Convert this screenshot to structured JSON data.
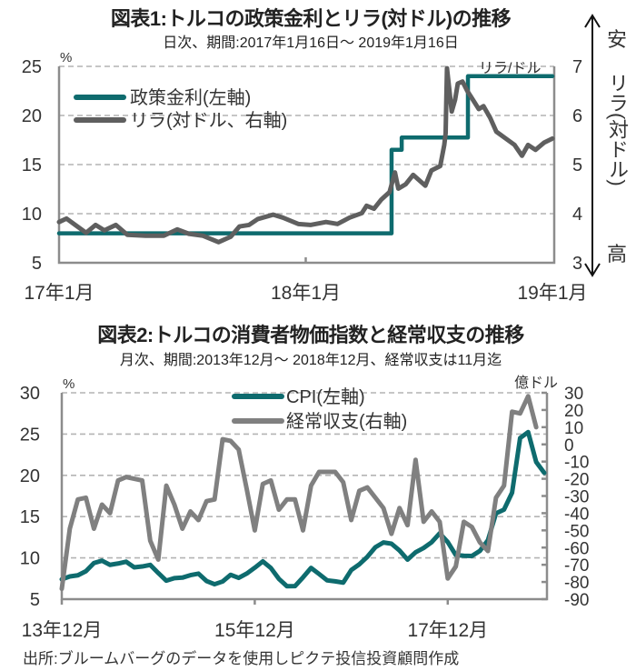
{
  "chart_data": [
    {
      "type": "line",
      "title": "図表1:トルコの政策金利とリラ(対ドル)の推移",
      "subtitle": "日次、期間:2017年1月16日～ 2019年1月16日",
      "x_range": [
        "2017-01-16",
        "2019-01-16"
      ],
      "x_ticks": [
        "2017-01-16",
        "2018-01-16",
        "2019-01-16"
      ],
      "x_tick_labels": [
        "17年1月",
        "18年1月",
        "19年1月"
      ],
      "y_left": {
        "label": "%",
        "range": [
          5,
          25
        ],
        "ticks": [
          5,
          10,
          15,
          20,
          25
        ],
        "tick_labels": [
          "5",
          "10",
          "15",
          "20",
          "25"
        ]
      },
      "y_right": {
        "label": "リラ/ドル",
        "range": [
          3,
          7
        ],
        "ticks": [
          3,
          4,
          5,
          6,
          7
        ],
        "tick_labels": [
          "3",
          "4",
          "5",
          "6",
          "7"
        ]
      },
      "right_annotation": {
        "top": "安",
        "middle": "リラ(対ドル)",
        "bottom": "高"
      },
      "grid": true,
      "legend_position": "top-left",
      "series": [
        {
          "name": "政策金利(左軸)",
          "axis": "left",
          "style": "step",
          "color": "#0e6b6e",
          "points": [
            [
              "2017-01-16",
              8.0
            ],
            [
              "2018-05-23",
              16.5
            ],
            [
              "2018-06-07",
              17.75
            ],
            [
              "2018-09-13",
              24.0
            ],
            [
              "2019-01-16",
              24.0
            ]
          ]
        },
        {
          "name": "リラ(対ドル、右軸)",
          "axis": "right",
          "style": "line",
          "color": "#5f5f5f",
          "points": [
            [
              "2017-01-16",
              3.83
            ],
            [
              "2017-01-27",
              3.9
            ],
            [
              "2017-02-09",
              3.77
            ],
            [
              "2017-02-25",
              3.61
            ],
            [
              "2017-03-11",
              3.77
            ],
            [
              "2017-03-24",
              3.66
            ],
            [
              "2017-04-10",
              3.77
            ],
            [
              "2017-04-27",
              3.57
            ],
            [
              "2017-05-24",
              3.55
            ],
            [
              "2017-06-20",
              3.55
            ],
            [
              "2017-07-10",
              3.68
            ],
            [
              "2017-07-27",
              3.59
            ],
            [
              "2017-08-17",
              3.55
            ],
            [
              "2017-09-09",
              3.42
            ],
            [
              "2017-09-27",
              3.53
            ],
            [
              "2017-10-10",
              3.74
            ],
            [
              "2017-10-24",
              3.77
            ],
            [
              "2017-11-06",
              3.89
            ],
            [
              "2017-11-29",
              3.98
            ],
            [
              "2017-12-13",
              3.92
            ],
            [
              "2018-01-05",
              3.79
            ],
            [
              "2018-01-23",
              3.77
            ],
            [
              "2018-02-15",
              3.83
            ],
            [
              "2018-03-04",
              3.79
            ],
            [
              "2018-03-22",
              3.92
            ],
            [
              "2018-04-09",
              4.01
            ],
            [
              "2018-04-16",
              4.16
            ],
            [
              "2018-04-27",
              4.1
            ],
            [
              "2018-05-08",
              4.29
            ],
            [
              "2018-05-20",
              4.44
            ],
            [
              "2018-05-28",
              4.84
            ],
            [
              "2018-06-02",
              4.51
            ],
            [
              "2018-06-13",
              4.6
            ],
            [
              "2018-06-24",
              4.79
            ],
            [
              "2018-07-12",
              4.57
            ],
            [
              "2018-07-21",
              4.88
            ],
            [
              "2018-08-03",
              4.97
            ],
            [
              "2018-08-09",
              5.4
            ],
            [
              "2018-08-11",
              5.64
            ],
            [
              "2018-08-13",
              6.96
            ],
            [
              "2018-08-20",
              6.08
            ],
            [
              "2018-08-25",
              6.32
            ],
            [
              "2018-08-29",
              6.65
            ],
            [
              "2018-09-05",
              6.69
            ],
            [
              "2018-09-12",
              6.5
            ],
            [
              "2018-09-19",
              6.35
            ],
            [
              "2018-09-29",
              6.13
            ],
            [
              "2018-10-06",
              6.19
            ],
            [
              "2018-10-16",
              5.95
            ],
            [
              "2018-10-25",
              5.67
            ],
            [
              "2018-11-08",
              5.53
            ],
            [
              "2018-11-21",
              5.4
            ],
            [
              "2018-12-02",
              5.18
            ],
            [
              "2018-12-11",
              5.4
            ],
            [
              "2018-12-22",
              5.3
            ],
            [
              "2019-01-04",
              5.45
            ],
            [
              "2019-01-16",
              5.53
            ]
          ]
        }
      ]
    },
    {
      "type": "line",
      "title": "図表2:トルコの消費者物価指数と経常収支の推移",
      "subtitle": "月次、期間:2013年12月～ 2018年12月、経常収支は11月迄",
      "x": [
        "2013-12",
        "2014-01",
        "2014-02",
        "2014-03",
        "2014-04",
        "2014-05",
        "2014-06",
        "2014-07",
        "2014-08",
        "2014-09",
        "2014-10",
        "2014-11",
        "2014-12",
        "2015-01",
        "2015-02",
        "2015-03",
        "2015-04",
        "2015-05",
        "2015-06",
        "2015-07",
        "2015-08",
        "2015-09",
        "2015-10",
        "2015-11",
        "2015-12",
        "2016-01",
        "2016-02",
        "2016-03",
        "2016-04",
        "2016-05",
        "2016-06",
        "2016-07",
        "2016-08",
        "2016-09",
        "2016-10",
        "2016-11",
        "2016-12",
        "2017-01",
        "2017-02",
        "2017-03",
        "2017-04",
        "2017-05",
        "2017-06",
        "2017-07",
        "2017-08",
        "2017-09",
        "2017-10",
        "2017-11",
        "2017-12",
        "2018-01",
        "2018-02",
        "2018-03",
        "2018-04",
        "2018-05",
        "2018-06",
        "2018-07",
        "2018-08",
        "2018-09",
        "2018-10",
        "2018-11",
        "2018-12"
      ],
      "x_ticks": [
        "2013-12",
        "2015-12",
        "2017-12"
      ],
      "x_tick_labels": [
        "13年12月",
        "15年12月",
        "17年12月"
      ],
      "y_left": {
        "label": "%",
        "range": [
          5,
          30
        ],
        "ticks": [
          5,
          10,
          15,
          20,
          25,
          30
        ],
        "tick_labels": [
          "5",
          "10",
          "15",
          "20",
          "25",
          "30"
        ]
      },
      "y_right": {
        "label": "億ドル",
        "range": [
          -90,
          30
        ],
        "ticks": [
          30,
          20,
          10,
          0,
          -10,
          -20,
          -30,
          -40,
          -50,
          -60,
          -70,
          -80,
          -90
        ],
        "tick_labels": [
          "30",
          "20",
          "10",
          "0",
          "-10",
          "-20",
          "-30",
          "-40",
          "-50",
          "-60",
          "-70",
          "-80",
          "-90"
        ]
      },
      "grid": true,
      "legend_position": "top-center",
      "series": [
        {
          "name": "CPI(左軸)",
          "axis": "left",
          "color": "#0e6b6e",
          "values": [
            7.4,
            7.75,
            7.89,
            8.39,
            9.38,
            9.66,
            9.16,
            9.32,
            9.54,
            8.86,
            8.96,
            9.15,
            8.17,
            7.24,
            7.55,
            7.61,
            7.91,
            8.09,
            7.2,
            6.81,
            7.14,
            7.95,
            7.58,
            8.1,
            8.81,
            9.58,
            8.78,
            7.46,
            6.57,
            6.58,
            7.64,
            8.79,
            8.05,
            7.28,
            7.16,
            7.0,
            8.53,
            9.22,
            10.13,
            11.29,
            11.87,
            11.72,
            10.9,
            9.79,
            10.68,
            11.2,
            11.9,
            12.98,
            11.92,
            10.35,
            10.26,
            10.23,
            10.85,
            12.15,
            15.39,
            15.85,
            17.9,
            24.52,
            25.24,
            21.62,
            20.3
          ]
        },
        {
          "name": "経常収支(右軸)",
          "axis": "right",
          "color": "#808080",
          "values": [
            -84,
            -49,
            -32,
            -31,
            -49,
            -35,
            -40,
            -21,
            -19,
            -20,
            -21,
            -56,
            -67,
            -24,
            -35,
            -49,
            -39,
            -44,
            -33,
            -32,
            3,
            2,
            -3,
            -26,
            -50,
            -23,
            -21,
            -38,
            -32,
            -32,
            -50,
            -24,
            -16,
            -16,
            -16,
            -22,
            -44,
            -27,
            -25,
            -31,
            -37,
            -52,
            -37,
            -47,
            -9,
            -45,
            -39,
            -45,
            -78,
            -71,
            -45,
            -48,
            -57,
            -62,
            -31,
            -24,
            19,
            18,
            28,
            10,
            null
          ]
        }
      ]
    }
  ],
  "footer": {
    "source": "出所:ブルームバーグのデータを使用しピクテ投信投資顧問作成"
  }
}
